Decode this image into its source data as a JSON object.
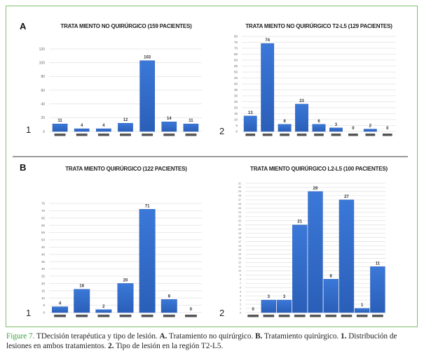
{
  "panels": {
    "A": "A",
    "B": "B"
  },
  "chart_numbers": {
    "one": "1",
    "two": "2"
  },
  "colors": {
    "bar": "#3b78d8",
    "bar_dark": "#2a5fb8",
    "category_marker": "#555555",
    "grid": "#e3e3e3",
    "frame": "#7fbf6e",
    "caption_figure": "#3aa23a"
  },
  "chart_data": [
    {
      "id": "A1",
      "type": "bar",
      "title": "TRATA MIENTO NO QUIRÚRGICO (159 PACIENTES)",
      "categories": [
        "",
        "",
        "",
        "",
        "",
        "",
        ""
      ],
      "values": [
        11,
        4,
        4,
        12,
        103,
        14,
        11
      ],
      "data_labels": [
        "11",
        "4",
        "4",
        "12",
        "103",
        "14",
        "11"
      ],
      "ylim": [
        0,
        120
      ],
      "yticks": [
        0,
        20,
        40,
        60,
        80,
        100,
        120
      ],
      "grid": true,
      "xlabel": "",
      "ylabel": ""
    },
    {
      "id": "A2",
      "type": "bar",
      "title": "TRATA MIENTO NO QUIRÚRGICO T2-L5 (129 PACIENTES)",
      "categories": [
        "",
        "",
        "",
        "",
        "",
        "",
        "",
        "",
        ""
      ],
      "values": [
        13,
        74,
        6,
        23,
        6,
        3,
        0,
        2,
        0
      ],
      "data_labels": [
        "13",
        "74",
        "6",
        "23",
        "6",
        "3",
        "0",
        "2",
        "0"
      ],
      "ylim": [
        0,
        80
      ],
      "yticks": [
        0,
        5,
        10,
        15,
        20,
        25,
        30,
        35,
        40,
        45,
        50,
        55,
        60,
        65,
        70,
        75,
        80
      ],
      "grid": true,
      "xlabel": "",
      "ylabel": ""
    },
    {
      "id": "B1",
      "type": "bar",
      "title": "TRATA MIENTO QUIRÚRGICO (122 PACIENTES)",
      "categories": [
        "",
        "",
        "",
        "",
        "",
        "",
        ""
      ],
      "values": [
        4,
        16,
        2,
        20,
        71,
        9,
        0
      ],
      "data_labels": [
        "4",
        "16",
        "2",
        "20",
        "71",
        "9",
        "0"
      ],
      "ylim": [
        0,
        75
      ],
      "yticks": [
        0,
        5,
        10,
        15,
        20,
        25,
        30,
        35,
        40,
        45,
        50,
        55,
        60,
        65,
        70,
        75
      ],
      "grid": true,
      "xlabel": "",
      "ylabel": ""
    },
    {
      "id": "B2",
      "type": "bar",
      "title": "TRATA MIENTO QUIRÚRGICO L2-L5 (100 PACIENTES)",
      "categories": [
        "",
        "",
        "",
        "",
        "",
        "",
        "",
        "",
        ""
      ],
      "values": [
        0,
        3,
        3,
        21,
        29,
        8,
        27,
        1,
        11
      ],
      "data_labels": [
        "0",
        "3",
        "3",
        "21",
        "29",
        "8",
        "27",
        "1",
        "11"
      ],
      "ylim": [
        0,
        31
      ],
      "yticks": [
        0,
        1,
        2,
        3,
        4,
        5,
        6,
        7,
        8,
        9,
        10,
        11,
        12,
        13,
        14,
        15,
        16,
        17,
        18,
        19,
        20,
        21,
        22,
        23,
        24,
        25,
        26,
        27,
        28,
        29,
        30,
        31
      ],
      "grid": true,
      "xlabel": "",
      "ylabel": ""
    }
  ],
  "caption": {
    "figure_label": "Figure 7.",
    "text1": " TDecisión terapéutica y tipo de lesión. ",
    "a_label": "A.",
    "text2": " Tratamiento no quirúrgico. ",
    "b_label": "B.",
    "text3": " Tratamiento quirúrgico. ",
    "one_label": "1.",
    "text4": " Distribución de lesiones en ambos tratamientos. ",
    "two_label": "2.",
    "text5": " Tipo de lesión en la región T2-L5."
  }
}
